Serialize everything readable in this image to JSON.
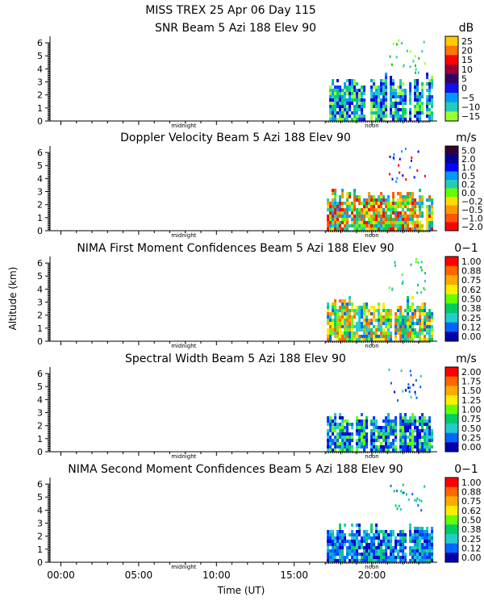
{
  "header": {
    "title": "MISS TREX   25 Apr 06 Day 115"
  },
  "chart_data": {
    "type": "heatmap",
    "ylabel": "Altitude (km)",
    "xlabel": "Time (UT)",
    "x_ticks": [
      "00:00",
      "05:00",
      "10:00",
      "15:00",
      "20:00"
    ],
    "x_tick_hours": [
      0,
      5,
      10,
      15,
      20
    ],
    "xlim_hours": [
      -0.7,
      24.2
    ],
    "y_ticks": [
      "0",
      "1",
      "2",
      "3",
      "4",
      "5",
      "6"
    ],
    "ylim": [
      0,
      6.5
    ],
    "marker_labels": [
      "midnight",
      "noon"
    ],
    "marker_hours": [
      7.9,
      20.0
    ],
    "data_start_hour": 17.1,
    "data_end_hour": 23.8,
    "panels": [
      {
        "title": "SNR Beam 5 Azi 188 Elev 90",
        "unit": "dB",
        "scale_labels": [
          "25",
          "20",
          "15",
          "10",
          "5",
          "0",
          "−5",
          "−10",
          "−15"
        ],
        "scale_colors": [
          "#ffcc00",
          "#ff7700",
          "#ff0000",
          "#990033",
          "#330066",
          "#1111ee",
          "#0099ff",
          "#22ccbb",
          "#99ff33"
        ],
        "echo_top_km": 3.6,
        "dominant": [
          "#0000dd",
          "#1133ff",
          "#0099ff",
          "#22ccbb",
          "#99ff33",
          "#00cc66"
        ],
        "sparse": [
          "#99ff33",
          "#00cc00",
          "#22ccbb"
        ]
      },
      {
        "title": "Doppler Velocity Beam 5 Azi 188 Elev 90",
        "unit": "m/s",
        "scale_labels": [
          "5.0",
          "2.0",
          "1.0",
          "0.5",
          "0.2",
          "0.0",
          "−0.2",
          "−0.5",
          "−1.0",
          "−2.0"
        ],
        "scale_colors": [
          "#330033",
          "#000099",
          "#0000ff",
          "#0099ff",
          "#22ccbb",
          "#66ff00",
          "#ffdd00",
          "#ff9900",
          "#ff5500",
          "#ff0000"
        ],
        "echo_top_km": 3.2,
        "dominant": [
          "#66ff00",
          "#ffdd00",
          "#ff9900",
          "#22ccbb",
          "#0099ff",
          "#ff5500",
          "#ff0000",
          "#00cc66"
        ],
        "sparse": [
          "#0000ff",
          "#ff0000",
          "#0099ff"
        ]
      },
      {
        "title": "NIMA First Moment Confidences Beam 5 Azi 188 Elev 90",
        "unit": "0−1",
        "scale_labels": [
          "1.00",
          "0.88",
          "0.75",
          "0.62",
          "0.50",
          "0.38",
          "0.25",
          "0.12",
          "0.00"
        ],
        "scale_colors": [
          "#ff0000",
          "#ff6600",
          "#ffaa00",
          "#ffee00",
          "#66ff00",
          "#00cc66",
          "#22cccc",
          "#0066ff",
          "#0000aa"
        ],
        "echo_top_km": 3.4,
        "dominant": [
          "#00cc66",
          "#66ff00",
          "#22cccc",
          "#ffee00",
          "#ffaa00",
          "#0066ff",
          "#ff6600"
        ],
        "sparse": [
          "#22cccc",
          "#66ff00",
          "#00cc66"
        ]
      },
      {
        "title": "Spectral Width Beam 5 Azi 188 Elev 90",
        "unit": "m/s",
        "scale_labels": [
          "2.00",
          "1.75",
          "1.50",
          "1.25",
          "1.00",
          "0.75",
          "0.50",
          "0.25",
          "0.00"
        ],
        "scale_colors": [
          "#ff0000",
          "#ff6600",
          "#ffaa00",
          "#ffee00",
          "#66ff00",
          "#00cc66",
          "#22cccc",
          "#0066ff",
          "#0000aa"
        ],
        "echo_top_km": 3.0,
        "dominant": [
          "#0000cc",
          "#0033ff",
          "#0066ff",
          "#22cccc",
          "#00cc66",
          "#66ff00"
        ],
        "sparse": [
          "#0000cc",
          "#0066ff",
          "#22cccc"
        ]
      },
      {
        "title": "NIMA Second Moment Confidences Beam 5 Azi 188 Elev 90",
        "unit": "0−1",
        "scale_labels": [
          "1.00",
          "0.88",
          "0.75",
          "0.62",
          "0.50",
          "0.38",
          "0.25",
          "0.12",
          "0.00"
        ],
        "scale_colors": [
          "#ff0000",
          "#ff6600",
          "#ffaa00",
          "#ffee00",
          "#66ff00",
          "#00cc66",
          "#22cccc",
          "#0066ff",
          "#0000aa"
        ],
        "echo_top_km": 3.0,
        "dominant": [
          "#0000cc",
          "#0033ff",
          "#22cccc",
          "#0066ff",
          "#00cc66",
          "#0099ff"
        ],
        "sparse": [
          "#22cccc",
          "#0066ff",
          "#00cc66"
        ]
      }
    ]
  }
}
